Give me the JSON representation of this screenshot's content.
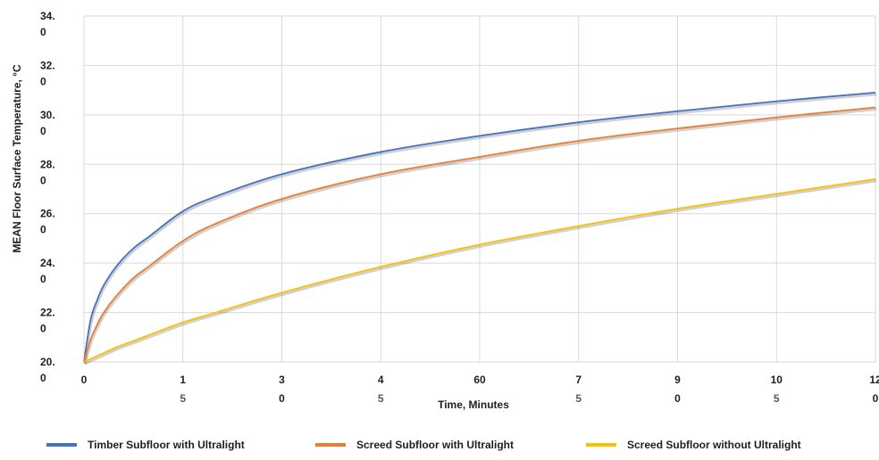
{
  "chart_data": {
    "type": "line",
    "xlabel": "Time, Minutes",
    "ylabel": "MEAN Floor Surface Temperature, °C",
    "xlim": [
      0,
      120
    ],
    "ylim": [
      20,
      34
    ],
    "x_ticks": [
      {
        "value": 0,
        "line1": "0",
        "line2": ""
      },
      {
        "value": 15,
        "line1": "1",
        "line2": "5"
      },
      {
        "value": 30,
        "line1": "3",
        "line2": "0"
      },
      {
        "value": 45,
        "line1": "4",
        "line2": "5"
      },
      {
        "value": 60,
        "line1": "60",
        "line2": ""
      },
      {
        "value": 75,
        "line1": "7",
        "line2": "5"
      },
      {
        "value": 90,
        "line1": "9",
        "line2": "0"
      },
      {
        "value": 105,
        "line1": "10",
        "line2": "5"
      },
      {
        "value": 120,
        "line1": "12",
        "line2": "0"
      }
    ],
    "y_ticks": [
      {
        "value": 20,
        "line1": "20.",
        "line2": "0"
      },
      {
        "value": 22,
        "line1": "22.",
        "line2": "0"
      },
      {
        "value": 24,
        "line1": "24.",
        "line2": "0"
      },
      {
        "value": 26,
        "line1": "26.",
        "line2": "0"
      },
      {
        "value": 28,
        "line1": "28.",
        "line2": "0"
      },
      {
        "value": 30,
        "line1": "30.",
        "line2": "0"
      },
      {
        "value": 32,
        "line1": "32.",
        "line2": "0"
      },
      {
        "value": 34,
        "line1": "34.",
        "line2": "0"
      }
    ],
    "grid": true,
    "legend_position": "bottom",
    "x": [
      0,
      1,
      2,
      3,
      5,
      7.5,
      10,
      15,
      20,
      30,
      45,
      60,
      75,
      90,
      105,
      120
    ],
    "series": [
      {
        "name": "Timber Subfloor with Ultralight",
        "color": "#4472C4",
        "values": [
          20.0,
          21.7,
          22.5,
          23.1,
          23.9,
          24.6,
          25.1,
          26.1,
          26.7,
          27.6,
          28.5,
          29.15,
          29.7,
          30.15,
          30.55,
          30.9
        ]
      },
      {
        "name": "Screed Subfloor with Ultralight",
        "color": "#ED7D31",
        "values": [
          20.0,
          20.9,
          21.5,
          22.0,
          22.7,
          23.4,
          23.9,
          24.9,
          25.6,
          26.6,
          27.6,
          28.3,
          28.95,
          29.45,
          29.9,
          30.3
        ]
      },
      {
        "name": "Screed Subfloor without Ultralight",
        "color": "#FFC000",
        "values": [
          20.0,
          20.12,
          20.24,
          20.36,
          20.6,
          20.85,
          21.1,
          21.6,
          22.0,
          22.8,
          23.85,
          24.75,
          25.5,
          26.2,
          26.8,
          27.4
        ]
      }
    ]
  }
}
